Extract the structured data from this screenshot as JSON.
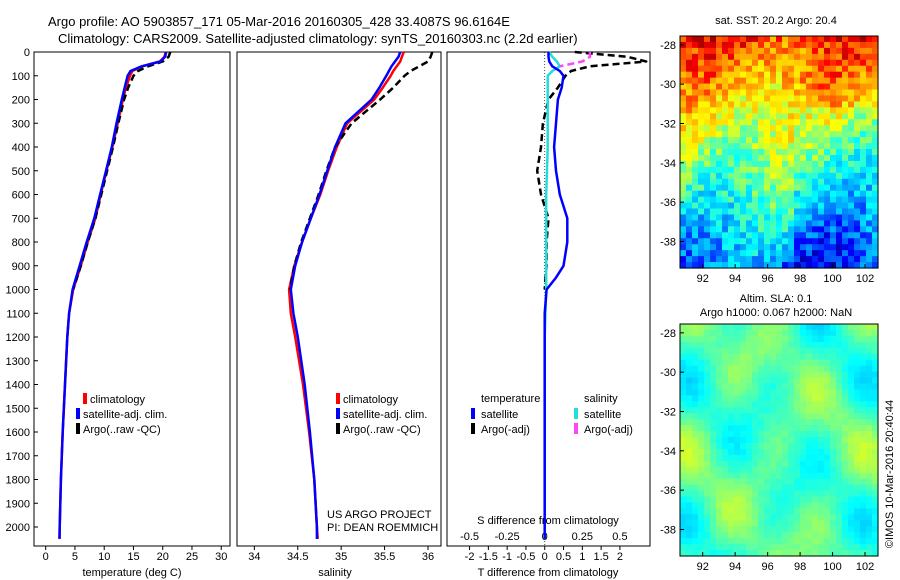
{
  "header": {
    "line1": "Argo profile: AO 5903857_171 05-Mar-2016 20160305_428 33.4087S 96.6164E",
    "line2": "Climatology: CARS2009. Satellite-adjusted climatology: synTS_20160303.nc (2.2d earlier)"
  },
  "colors": {
    "climatology": "#ff0000",
    "satellite": "#0000ff",
    "argo": "#000000",
    "salinity_satellite": "#22dddd",
    "salinity_argo": "#ff44ff"
  },
  "legend": {
    "climatology": "climatology",
    "satellite_adj": "satellite-adj. clim.",
    "argo_raw": "Argo(..raw -QC)",
    "temperature_head": "temperature",
    "salinity_head": "salinity",
    "satellite": "satellite",
    "argo_adj": "Argo(-adj)"
  },
  "project": {
    "line1": "US ARGO PROJECT",
    "line2": "PI: DEAN ROEMMICH"
  },
  "maps": {
    "sst_title": "sat. SST: 20.2 Argo: 20.4",
    "sla_title1": "Altim. SLA: 0.1",
    "sla_title2": "Argo h1000: 0.067 h2000: NaN",
    "lat_ticks": [
      "-28",
      "-30",
      "-32",
      "-34",
      "-36",
      "-38"
    ],
    "lon_ticks": [
      "92",
      "94",
      "96",
      "98",
      "100",
      "102"
    ],
    "stamp": "©IMOS 10-Mar-2016 20:40:44"
  },
  "chart_data": [
    {
      "type": "line",
      "name": "temperature",
      "xlabel": "temperature (deg C)",
      "xlim": [
        -2,
        31.5
      ],
      "ylim": [
        0,
        2080
      ],
      "xticks": [
        "0",
        "5",
        "10",
        "15",
        "20",
        "25",
        "30"
      ],
      "yticks": [
        "0",
        "100",
        "200",
        "300",
        "400",
        "500",
        "600",
        "700",
        "800",
        "900",
        "1000",
        "1100",
        "1200",
        "1300",
        "1400",
        "1500",
        "1600",
        "1700",
        "1800",
        "1900",
        "2000"
      ],
      "depth": [
        0,
        20,
        40,
        60,
        80,
        100,
        150,
        200,
        300,
        400,
        500,
        600,
        700,
        800,
        900,
        1000,
        1100,
        1200,
        1400,
        1600,
        1800,
        2000,
        2050
      ],
      "series": [
        {
          "name": "climatology",
          "values": [
            20.5,
            20.3,
            19.5,
            16.5,
            14.8,
            14.4,
            13.7,
            13.2,
            12.3,
            11.4,
            10.4,
            9.4,
            8.5,
            7.2,
            6.0,
            4.7,
            4.0,
            3.7,
            3.3,
            2.9,
            2.6,
            2.4,
            2.35
          ]
        },
        {
          "name": "satellite-adj. clim.",
          "values": [
            20.6,
            20.4,
            19.6,
            16.4,
            14.5,
            14.0,
            13.5,
            13.0,
            12.1,
            11.3,
            10.3,
            9.3,
            8.3,
            7.0,
            5.8,
            4.6,
            4.0,
            3.7,
            3.3,
            2.9,
            2.6,
            2.4,
            2.35
          ]
        },
        {
          "name": "Argo(..raw -QC)",
          "values": [
            21.3,
            21.0,
            20.0,
            17.5,
            15.8,
            15.0,
            14.1,
            13.4,
            12.4,
            11.5,
            10.5,
            9.5,
            8.5,
            7.2,
            6.0,
            4.7
          ]
        }
      ]
    },
    {
      "type": "line",
      "name": "salinity",
      "xlabel": "salinity",
      "xlim": [
        33.8,
        36.15
      ],
      "ylim": [
        0,
        2080
      ],
      "xticks": [
        "34",
        "34.5",
        "35",
        "35.5",
        "36"
      ],
      "depth": [
        0,
        20,
        40,
        60,
        80,
        100,
        150,
        200,
        300,
        400,
        500,
        600,
        700,
        800,
        900,
        1000,
        1100,
        1200,
        1400,
        1600,
        1800,
        2000,
        2050
      ],
      "series": [
        {
          "name": "climatology",
          "values": [
            35.72,
            35.7,
            35.68,
            35.64,
            35.6,
            35.57,
            35.48,
            35.38,
            35.07,
            34.95,
            34.85,
            34.76,
            34.65,
            34.55,
            34.46,
            34.4,
            34.42,
            34.47,
            34.56,
            34.63,
            34.69,
            34.72,
            34.73
          ]
        },
        {
          "name": "satellite-adj. clim.",
          "values": [
            35.68,
            35.66,
            35.62,
            35.58,
            35.55,
            35.52,
            35.44,
            35.35,
            35.05,
            34.93,
            34.84,
            34.75,
            34.65,
            34.55,
            34.47,
            34.42,
            34.45,
            34.5,
            34.58,
            34.64,
            34.69,
            34.72,
            34.72
          ]
        },
        {
          "name": "Argo(..raw -QC)",
          "values": [
            36.05,
            36.03,
            36.0,
            35.9,
            35.8,
            35.73,
            35.6,
            35.45,
            35.12,
            34.93,
            34.83,
            34.74,
            34.64,
            34.54,
            34.46,
            34.41
          ]
        }
      ]
    },
    {
      "type": "line",
      "name": "difference",
      "xlabel": "T difference from climatology",
      "xlabel_top": "S difference from climatology",
      "xlim": [
        -2.6,
        2.8
      ],
      "ylim": [
        0,
        2080
      ],
      "xticks": [
        "-2",
        "-1.5",
        "-1",
        "-0.5",
        "0",
        "0.5",
        "1",
        "1.5",
        "2"
      ],
      "xticks_top": [
        "-0.5",
        "-0.25",
        "0",
        "0.25",
        "0.5"
      ],
      "s_scale": 4,
      "depth_t": [
        0,
        20,
        40,
        60,
        80,
        100,
        150,
        200,
        300,
        400,
        500,
        600,
        700,
        800,
        850,
        900,
        950,
        1000,
        1100,
        1200,
        1400,
        1600,
        1800,
        2000,
        2050
      ],
      "series_t": [
        {
          "name": "satellite",
          "values": [
            0.1,
            0.1,
            0.12,
            0.2,
            0.4,
            0.5,
            0.45,
            0.35,
            0.3,
            0.25,
            0.3,
            0.4,
            0.6,
            0.6,
            0.55,
            0.5,
            0.3,
            0.05,
            0,
            0,
            0,
            0,
            0,
            0,
            0
          ]
        },
        {
          "name": "Argo(-adj)",
          "values": [
            0.8,
            2.2,
            2.7,
            1.2,
            0.7,
            0.55,
            0.35,
            0.1,
            -0.05,
            -0.1,
            -0.2,
            -0.1,
            0.1,
            0.05,
            0.05,
            0.05,
            0.02,
            0
          ]
        }
      ],
      "depth_s": [
        0,
        20,
        40,
        60,
        80,
        100,
        200,
        300,
        400,
        600,
        800,
        1000,
        1200,
        1400,
        1600,
        1800,
        2000,
        2050
      ],
      "series_s": [
        {
          "name": "satellite",
          "values": [
            0.03,
            0.05,
            0.08,
            0.1,
            0.05,
            0.02,
            0.02,
            0.02,
            0.02,
            0.01,
            0.01,
            0.01,
            0.0,
            0.0,
            0.0,
            0.0,
            0.0,
            0.0
          ]
        },
        {
          "name": "Argo(-adj)",
          "values": [
            0.3,
            0.3,
            0.25,
            0.1
          ]
        }
      ]
    }
  ]
}
